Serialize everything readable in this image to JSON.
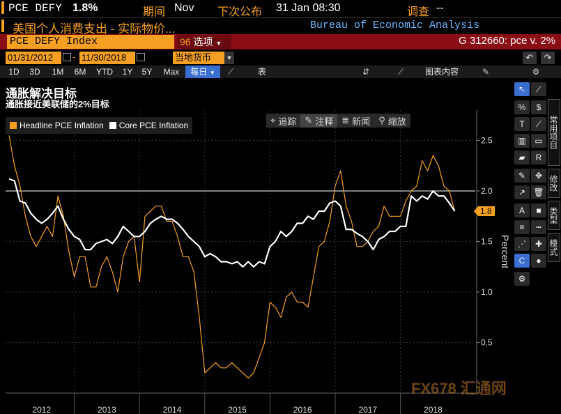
{
  "header": {
    "ticker": "PCE DEFY",
    "value": "1.8%",
    "period_label": "期间",
    "period_value": "Nov",
    "next_release_label": "下次公布",
    "next_release_value": "31 Jan 08:30",
    "survey_label": "调查",
    "survey_value": "--"
  },
  "subheader": {
    "description": "美国个人消费支出 - 实际物价...",
    "source": "Bureau of Economic Analysis"
  },
  "ticker_bar": {
    "security": "PCE DEFY Index",
    "options_num": "96",
    "options_label": "选项",
    "right_text": "G 312660: pce v. 2%"
  },
  "date_bar": {
    "start_date": "01/31/2012",
    "end_date": "11/30/2018",
    "currency": "当地货币"
  },
  "period_bar": {
    "buttons": [
      "1D",
      "3D",
      "1M",
      "6M",
      "YTD",
      "1Y",
      "5Y",
      "Max"
    ],
    "frequency": "每日",
    "table_label": "表",
    "chart_content_label": "图表内容"
  },
  "chart_tools": {
    "track": "追踪",
    "annotate": "注释",
    "news": "新闻",
    "zoom": "缩放"
  },
  "side_tabs": [
    "常用项目",
    "修改",
    "类型",
    "模式"
  ],
  "watermark": "FX678 汇通网",
  "chart_data": {
    "type": "line",
    "title": "通胀解决目标",
    "subtitle": "通胀接近美联储的2%目标",
    "ylabel": "Percent",
    "ylim": [
      0.0,
      2.8
    ],
    "yticks": [
      0.5,
      1.0,
      1.5,
      2.0,
      2.5
    ],
    "xtick_labels": [
      "2012",
      "2013",
      "2014",
      "2015",
      "2016",
      "2017",
      "2018"
    ],
    "reference_line": 2.0,
    "last_value_label": "1.8",
    "grid": true,
    "legend_position": "top-left",
    "colors": {
      "headline": "#f6a023",
      "core": "#ffffff"
    },
    "series": [
      {
        "name": "Headline PCE Inflation",
        "x": [
          "2012-01",
          "2012-02",
          "2012-03",
          "2012-04",
          "2012-05",
          "2012-06",
          "2012-07",
          "2012-08",
          "2012-09",
          "2012-10",
          "2012-11",
          "2012-12",
          "2013-01",
          "2013-02",
          "2013-03",
          "2013-04",
          "2013-05",
          "2013-06",
          "2013-07",
          "2013-08",
          "2013-09",
          "2013-10",
          "2013-11",
          "2013-12",
          "2014-01",
          "2014-02",
          "2014-03",
          "2014-04",
          "2014-05",
          "2014-06",
          "2014-07",
          "2014-08",
          "2014-09",
          "2014-10",
          "2014-11",
          "2014-12",
          "2015-01",
          "2015-02",
          "2015-03",
          "2015-04",
          "2015-05",
          "2015-06",
          "2015-07",
          "2015-08",
          "2015-09",
          "2015-10",
          "2015-11",
          "2015-12",
          "2016-01",
          "2016-02",
          "2016-03",
          "2016-04",
          "2016-05",
          "2016-06",
          "2016-07",
          "2016-08",
          "2016-09",
          "2016-10",
          "2016-11",
          "2016-12",
          "2017-01",
          "2017-02",
          "2017-03",
          "2017-04",
          "2017-05",
          "2017-06",
          "2017-07",
          "2017-08",
          "2017-09",
          "2017-10",
          "2017-11",
          "2017-12",
          "2018-01",
          "2018-02",
          "2018-03",
          "2018-04",
          "2018-05",
          "2018-06",
          "2018-07",
          "2018-08",
          "2018-09",
          "2018-10",
          "2018-11"
        ],
        "values": [
          2.55,
          2.25,
          2.05,
          1.75,
          1.55,
          1.45,
          1.55,
          1.65,
          1.55,
          1.95,
          1.75,
          1.4,
          1.15,
          1.35,
          1.35,
          1.05,
          1.05,
          1.25,
          1.35,
          1.2,
          1.0,
          1.35,
          1.5,
          1.55,
          1.1,
          1.75,
          1.8,
          1.85,
          1.85,
          1.7,
          1.7,
          1.55,
          1.35,
          1.35,
          1.2,
          0.75,
          0.2,
          0.25,
          0.3,
          0.25,
          0.25,
          0.3,
          0.25,
          0.2,
          0.15,
          0.2,
          0.35,
          0.5,
          0.9,
          0.85,
          0.75,
          0.95,
          1.0,
          0.9,
          0.9,
          0.85,
          1.15,
          1.45,
          1.5,
          1.7,
          2.05,
          2.2,
          1.85,
          1.7,
          1.45,
          1.45,
          1.5,
          1.6,
          1.65,
          1.85,
          1.75,
          1.75,
          1.75,
          1.9,
          2.0,
          2.05,
          2.3,
          2.2,
          2.35,
          2.25,
          2.05,
          2.0,
          1.8
        ]
      },
      {
        "name": "Core PCE Inflation",
        "x": [
          "2012-01",
          "2012-02",
          "2012-03",
          "2012-04",
          "2012-05",
          "2012-06",
          "2012-07",
          "2012-08",
          "2012-09",
          "2012-10",
          "2012-11",
          "2012-12",
          "2013-01",
          "2013-02",
          "2013-03",
          "2013-04",
          "2013-05",
          "2013-06",
          "2013-07",
          "2013-08",
          "2013-09",
          "2013-10",
          "2013-11",
          "2013-12",
          "2014-01",
          "2014-02",
          "2014-03",
          "2014-04",
          "2014-05",
          "2014-06",
          "2014-07",
          "2014-08",
          "2014-09",
          "2014-10",
          "2014-11",
          "2014-12",
          "2015-01",
          "2015-02",
          "2015-03",
          "2015-04",
          "2015-05",
          "2015-06",
          "2015-07",
          "2015-08",
          "2015-09",
          "2015-10",
          "2015-11",
          "2015-12",
          "2016-01",
          "2016-02",
          "2016-03",
          "2016-04",
          "2016-05",
          "2016-06",
          "2016-07",
          "2016-08",
          "2016-09",
          "2016-10",
          "2016-11",
          "2016-12",
          "2017-01",
          "2017-02",
          "2017-03",
          "2017-04",
          "2017-05",
          "2017-06",
          "2017-07",
          "2017-08",
          "2017-09",
          "2017-10",
          "2017-11",
          "2017-12",
          "2018-01",
          "2018-02",
          "2018-03",
          "2018-04",
          "2018-05",
          "2018-06",
          "2018-07",
          "2018-08",
          "2018-09",
          "2018-10",
          "2018-11"
        ],
        "values": [
          2.12,
          2.1,
          1.9,
          1.88,
          1.78,
          1.72,
          1.68,
          1.72,
          1.78,
          1.85,
          1.72,
          1.62,
          1.55,
          1.52,
          1.42,
          1.42,
          1.48,
          1.5,
          1.52,
          1.48,
          1.55,
          1.65,
          1.6,
          1.55,
          1.55,
          1.6,
          1.68,
          1.72,
          1.75,
          1.72,
          1.72,
          1.68,
          1.62,
          1.55,
          1.5,
          1.45,
          1.35,
          1.38,
          1.35,
          1.3,
          1.3,
          1.28,
          1.3,
          1.25,
          1.3,
          1.25,
          1.3,
          1.28,
          1.45,
          1.5,
          1.6,
          1.55,
          1.6,
          1.68,
          1.68,
          1.75,
          1.72,
          1.8,
          1.8,
          1.88,
          1.9,
          1.85,
          1.62,
          1.62,
          1.58,
          1.55,
          1.5,
          1.42,
          1.52,
          1.55,
          1.6,
          1.6,
          1.65,
          1.65,
          1.95,
          1.9,
          1.95,
          1.92,
          2.0,
          1.95,
          1.95,
          1.88,
          1.8
        ]
      }
    ]
  }
}
